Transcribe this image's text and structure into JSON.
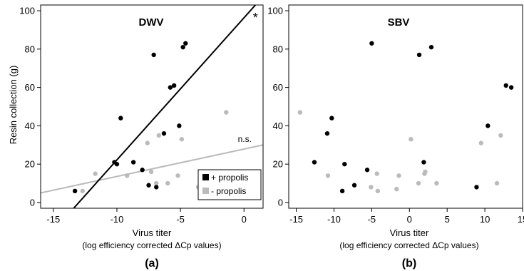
{
  "chart_data": [
    {
      "type": "scatter",
      "title": "DWV",
      "panel_label": "(a)",
      "xlabel": "Virus titer",
      "xlabel2": "(log efficiency corrected ΔCp values)",
      "ylabel": "Resin collection (g)",
      "xlim": [
        -16,
        1.5
      ],
      "ylim": [
        -3,
        103
      ],
      "xticks": [
        -15,
        -10,
        -5,
        0
      ],
      "yticks": [
        0,
        20,
        40,
        60,
        80,
        100
      ],
      "grid": false,
      "legend_position": "bottom-right",
      "series": [
        {
          "name": "+ propolis",
          "color": "#000000",
          "points": [
            [
              -13.3,
              6
            ],
            [
              -10.2,
              21
            ],
            [
              -10.0,
              20
            ],
            [
              -9.7,
              44
            ],
            [
              -8.7,
              21
            ],
            [
              -8.0,
              17
            ],
            [
              -7.5,
              9
            ],
            [
              -7.1,
              77
            ],
            [
              -6.9,
              8
            ],
            [
              -6.3,
              36
            ],
            [
              -5.8,
              60
            ],
            [
              -5.5,
              61
            ],
            [
              -5.1,
              40
            ],
            [
              -4.8,
              81
            ],
            [
              -4.6,
              83
            ]
          ],
          "fit_line": {
            "x": [
              -13.4,
              0.9
            ],
            "y": [
              -3,
              103
            ]
          }
        },
        {
          "name": "- propolis",
          "color": "#bbbbbb",
          "points": [
            [
              -12.7,
              6
            ],
            [
              -11.7,
              15
            ],
            [
              -9.2,
              14
            ],
            [
              -7.6,
              31
            ],
            [
              -7.3,
              16
            ],
            [
              -6.9,
              10
            ],
            [
              -6.7,
              35
            ],
            [
              -6.0,
              10
            ],
            [
              -5.2,
              14
            ],
            [
              -4.9,
              33
            ],
            [
              -3.6,
              8
            ],
            [
              -1.4,
              47
            ],
            [
              -1.1,
              15
            ]
          ],
          "fit_line": {
            "x": [
              -16,
              1.5
            ],
            "y": [
              5,
              30
            ]
          }
        }
      ],
      "annotations": [
        {
          "text": "*",
          "x": 0.9,
          "y": 97
        },
        {
          "text": "n.s.",
          "x": 0.6,
          "y": 33
        }
      ]
    },
    {
      "type": "scatter",
      "title": "SBV",
      "panel_label": "(b)",
      "xlabel": "Virus titer",
      "xlabel2": "(log efficiency corrected ΔCp values)",
      "ylabel": "",
      "xlim": [
        -16,
        15
      ],
      "ylim": [
        -3,
        103
      ],
      "xticks": [
        -15,
        -10,
        -5,
        0,
        5,
        10,
        15
      ],
      "yticks": [
        0,
        20,
        40,
        60,
        80,
        100
      ],
      "grid": false,
      "series": [
        {
          "name": "+ propolis",
          "color": "#000000",
          "points": [
            [
              -12.6,
              21
            ],
            [
              -10.9,
              36
            ],
            [
              -10.3,
              44
            ],
            [
              -8.9,
              6
            ],
            [
              -8.6,
              20
            ],
            [
              -7.3,
              9
            ],
            [
              -5.6,
              17
            ],
            [
              -5.0,
              83
            ],
            [
              1.3,
              77
            ],
            [
              1.9,
              21
            ],
            [
              2.9,
              81
            ],
            [
              8.9,
              8
            ],
            [
              10.4,
              40
            ],
            [
              12.8,
              61
            ],
            [
              13.5,
              60
            ]
          ]
        },
        {
          "name": "- propolis",
          "color": "#bbbbbb",
          "points": [
            [
              -14.5,
              47
            ],
            [
              -10.8,
              14
            ],
            [
              -5.1,
              8
            ],
            [
              -4.3,
              15
            ],
            [
              -4.2,
              6
            ],
            [
              -1.7,
              7
            ],
            [
              -1.4,
              14
            ],
            [
              0.2,
              33
            ],
            [
              1.2,
              10
            ],
            [
              2.0,
              15
            ],
            [
              2.1,
              16
            ],
            [
              3.6,
              10
            ],
            [
              9.5,
              31
            ],
            [
              11.6,
              10
            ],
            [
              12.1,
              35
            ]
          ]
        }
      ]
    }
  ]
}
